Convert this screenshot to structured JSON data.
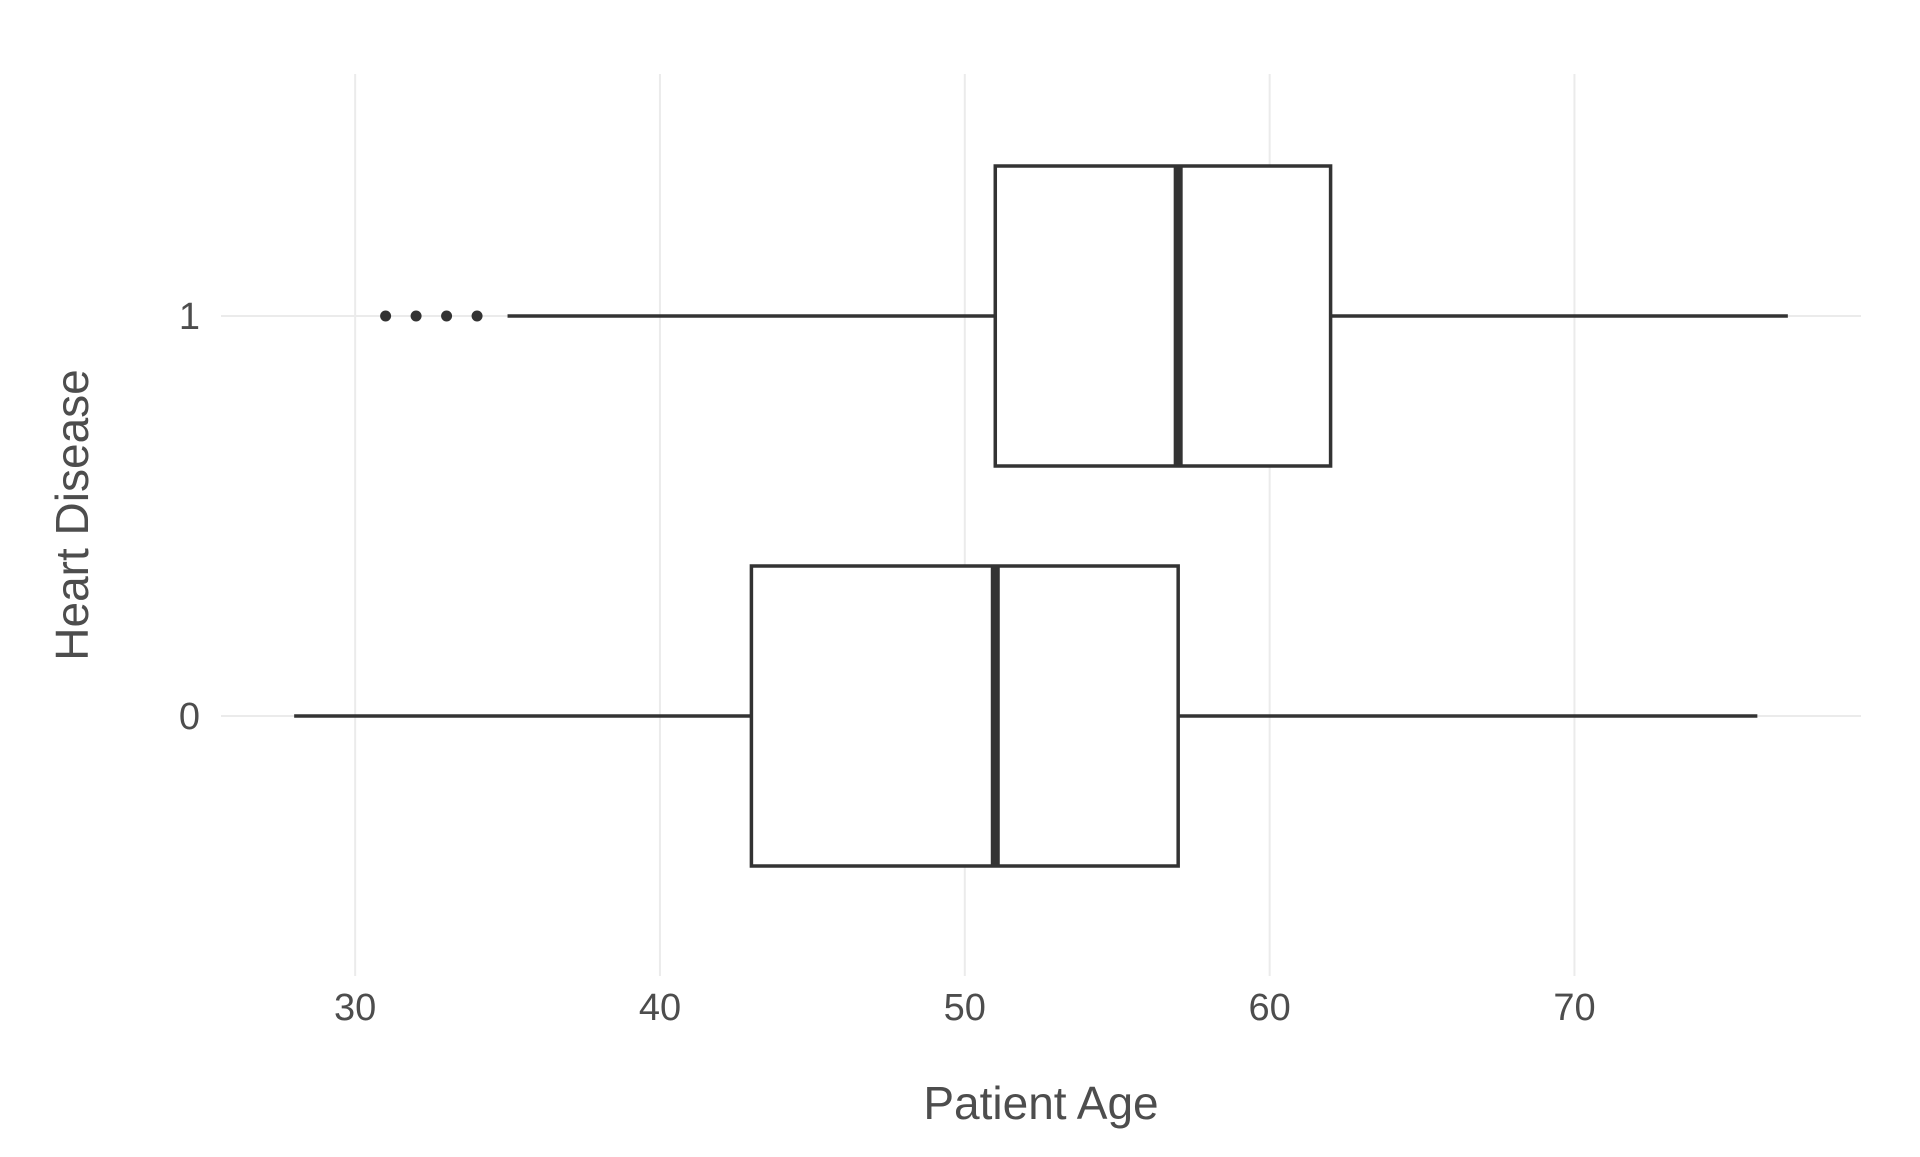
{
  "chart_data": {
    "type": "boxplot",
    "orientation": "horizontal",
    "xlabel": "Patient Age",
    "ylabel": "Heart Disease",
    "xlim": [
      25.6,
      79.4
    ],
    "x_ticks": [
      "30",
      "40",
      "50",
      "60",
      "70"
    ],
    "x_tick_values": [
      30,
      40,
      50,
      60,
      70
    ],
    "categories": [
      "0",
      "1"
    ],
    "grid": true,
    "legend": "none",
    "boxes": [
      {
        "category": "0",
        "whisker_low": 28,
        "q1": 43,
        "median": 51,
        "q3": 57,
        "whisker_high": 76,
        "outliers": []
      },
      {
        "category": "1",
        "whisker_low": 35,
        "q1": 51,
        "median": 57,
        "q3": 62,
        "whisker_high": 77,
        "outliers": [
          31,
          32,
          33,
          34
        ]
      }
    ],
    "colors": {
      "line": "#333333",
      "fill": "#ffffff",
      "grid": "#ebebeb",
      "text": "#4d4d4d"
    }
  }
}
